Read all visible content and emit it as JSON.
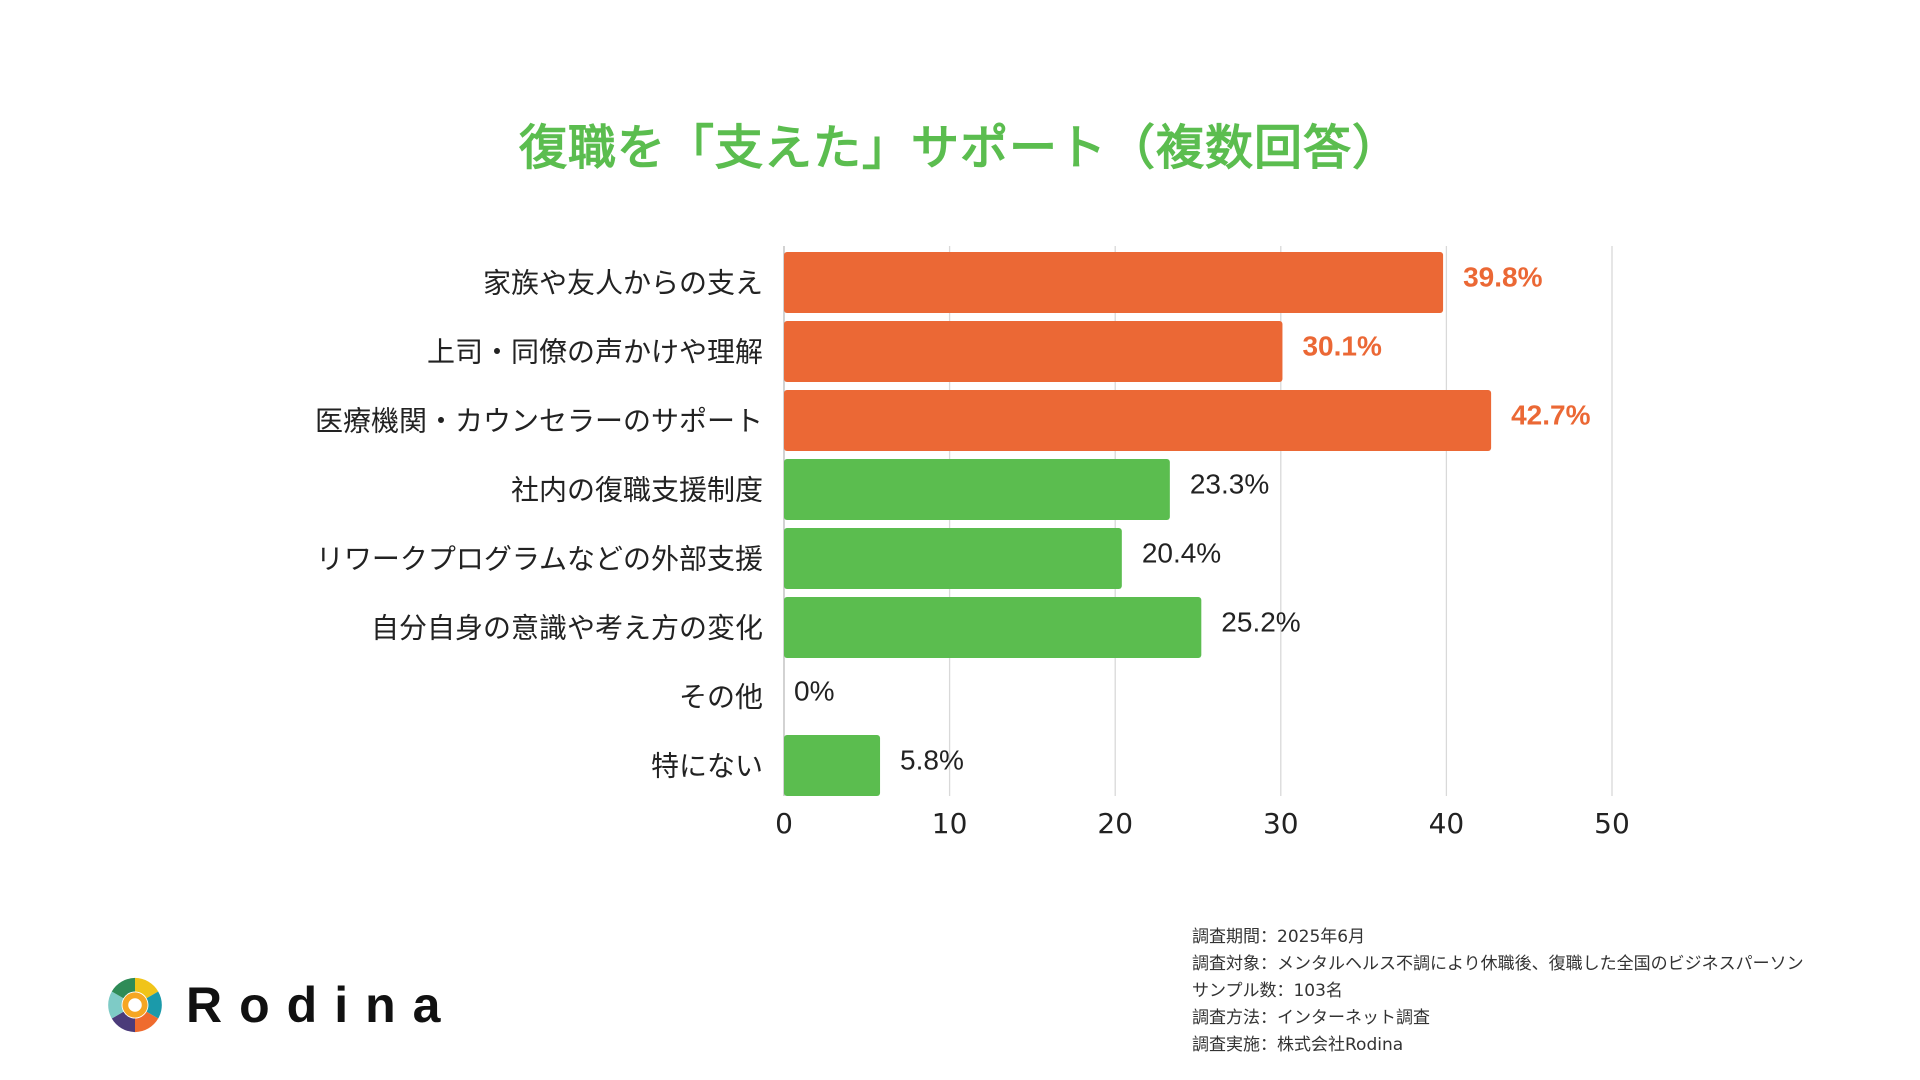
{
  "chart_data": {
    "type": "bar",
    "orientation": "horizontal",
    "title": "復職を「支えた」サポート（複数回答）",
    "categories": [
      "家族や友人からの支え",
      "上司・同僚の声かけや理解",
      "医療機関・カウンセラーのサポート",
      "社内の復職支援制度",
      "リワークプログラムなどの外部支援",
      "自分自身の意識や考え方の変化",
      "その他",
      "特にない"
    ],
    "values": [
      39.8,
      30.1,
      42.7,
      23.3,
      20.4,
      25.2,
      0,
      5.8
    ],
    "data_labels": [
      "39.8%",
      "30.1%",
      "42.7%",
      "23.3%",
      "20.4%",
      "25.2%",
      "0%",
      "5.8%"
    ],
    "highlighted": [
      true,
      true,
      true,
      false,
      false,
      false,
      false,
      false
    ],
    "xlim": [
      0,
      50
    ],
    "xticks": [
      "0",
      "10",
      "20",
      "30",
      "40",
      "50"
    ],
    "grid": true,
    "colors": {
      "highlight": "#eb6835",
      "normal": "#5bbd4f",
      "title": "#5bbd4f"
    }
  },
  "footer": {
    "lines": [
      "調査期間：2025年6月",
      "調査対象：メンタルヘルス不調により休職後、復職した全国のビジネスパーソン",
      "サンプル数：103名",
      "調査方法：インターネット調査",
      "調査実施：株式会社Rodina"
    ]
  },
  "logo": {
    "text": "Rodina"
  }
}
